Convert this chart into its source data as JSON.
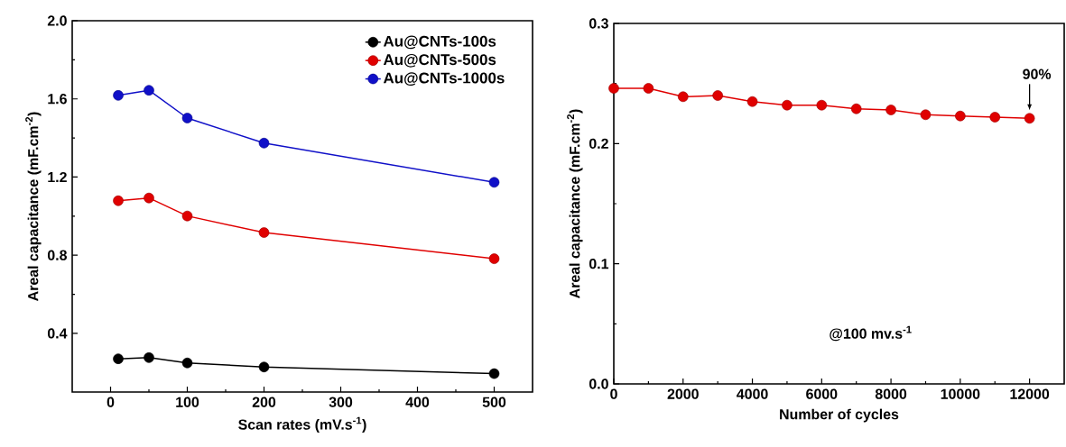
{
  "chart_data": [
    {
      "type": "line",
      "xlabel": "Scan rates (mV.s$^{-1}$)",
      "ylabel": "Areal capacitance (mF.cm$^{-2}$)",
      "x": [
        10,
        50,
        100,
        200,
        500
      ],
      "series": [
        {
          "name": "Au@CNTs-100s",
          "color": "#000000",
          "values": [
            0.27,
            0.276,
            0.249,
            0.228,
            0.194
          ]
        },
        {
          "name": "Au@CNTs-500s",
          "color": "#e00000",
          "values": [
            1.079,
            1.093,
            1.001,
            0.916,
            0.782
          ]
        },
        {
          "name": "Au@CNTs-1000s",
          "color": "#1010c8",
          "values": [
            1.618,
            1.644,
            1.502,
            1.374,
            1.173
          ]
        }
      ],
      "xlim": [
        -50,
        550
      ],
      "ylim": [
        0.1,
        2.0
      ],
      "xticks": [
        0,
        100,
        200,
        300,
        400,
        500
      ],
      "yticks": [
        {
          "value": 0.4,
          "label": "0.4"
        },
        {
          "value": 0.8,
          "label": "0.8"
        },
        {
          "value": 1.2,
          "label": "1.2"
        },
        {
          "value": 1.6,
          "label": "1.6"
        },
        {
          "value": 2.0,
          "label": "2.0"
        }
      ],
      "legend": "top right",
      "marker": "circle",
      "line_style": "solid"
    },
    {
      "type": "line",
      "xlabel": "Number of cycles",
      "ylabel": "Areal capacitance (mF.cm$^{-2}$)",
      "x": [
        0,
        1000,
        2000,
        3000,
        4000,
        5000,
        6000,
        7000,
        8000,
        9000,
        10000,
        11000,
        12000
      ],
      "series": [
        {
          "color": "#e00000",
          "values": [
            0.246,
            0.246,
            0.239,
            0.24,
            0.235,
            0.232,
            0.232,
            0.229,
            0.228,
            0.224,
            0.223,
            0.222,
            0.221
          ]
        }
      ],
      "xlim": [
        0,
        13000
      ],
      "ylim": [
        0,
        0.3
      ],
      "xticks": [
        0,
        2000,
        4000,
        6000,
        8000,
        10000,
        12000
      ],
      "yticks": [
        {
          "value": 0,
          "label": "0.0"
        },
        {
          "value": 0.1,
          "label": "0.1"
        },
        {
          "value": 0.2,
          "label": "0.2"
        },
        {
          "value": 0.3,
          "label": "0.3"
        }
      ],
      "annotations": [
        {
          "text": "90%",
          "x": 12000,
          "y": 0.221
        },
        "@100 mv.s$^{-1}$"
      ],
      "marker": "circle",
      "line_style": "solid"
    }
  ]
}
